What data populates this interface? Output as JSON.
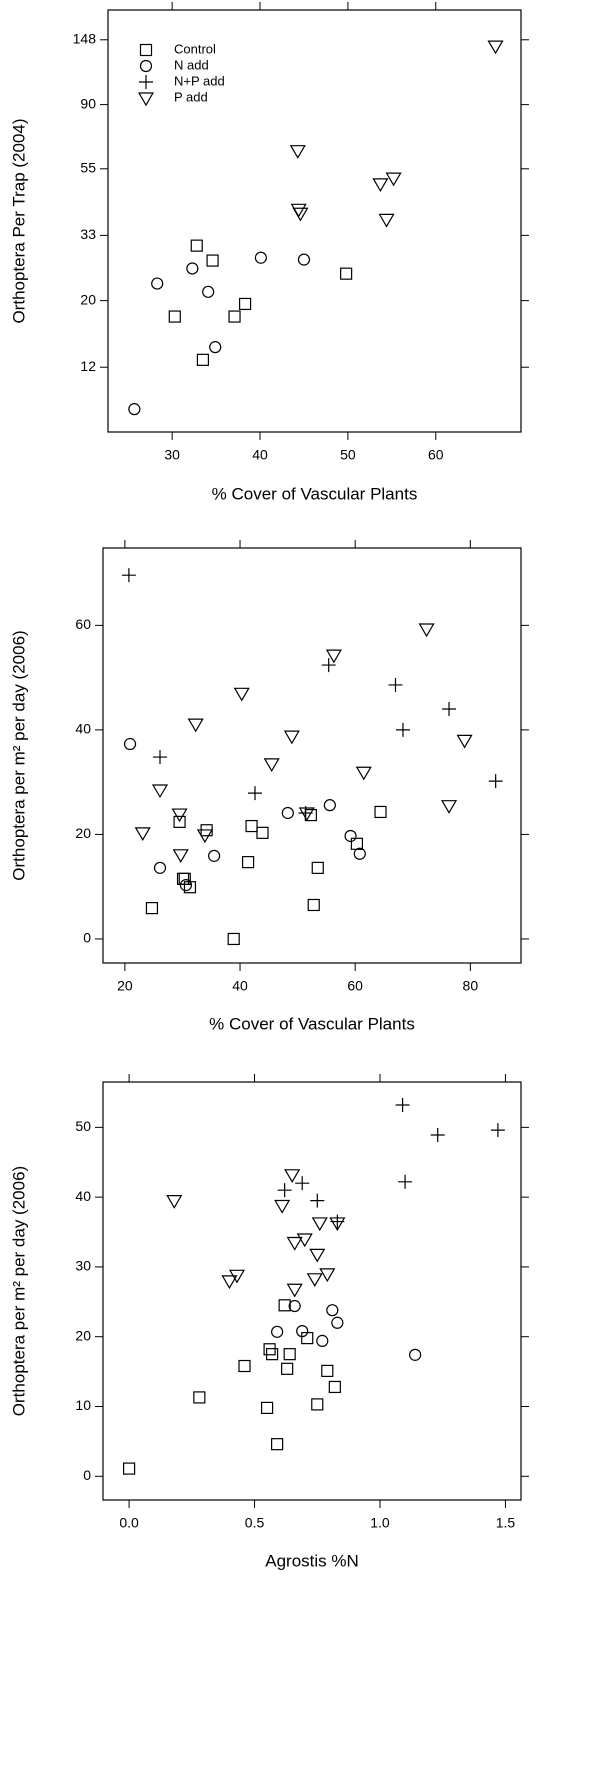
{
  "chart_data": [
    {
      "type": "scatter",
      "yscale": "log",
      "xlabel": "% Cover of Vascular Plants",
      "ylabel": "Orthoptera Per Trap (2004)",
      "xlim": [
        22.7,
        69.7
      ],
      "ylim": [
        7.3,
        186
      ],
      "xticks": [
        30,
        40,
        50,
        60
      ],
      "yticks": [
        12,
        20,
        33,
        55,
        90,
        148
      ],
      "legend": "top-left",
      "series": [
        {
          "name": "Control",
          "marker": "square",
          "color": "#000000",
          "x": [
            32.8,
            34.6,
            30.3,
            38.3,
            37.1,
            33.5,
            49.8
          ],
          "values": [
            30.5,
            27.2,
            17.7,
            19.5,
            17.7,
            12.7,
            24.6
          ]
        },
        {
          "name": "N add",
          "marker": "circle",
          "color": "#000000",
          "x": [
            28.3,
            32.3,
            34.1,
            40.1,
            45.0,
            34.9,
            25.7
          ],
          "values": [
            22.8,
            25.6,
            21.4,
            27.8,
            27.4,
            14.0,
            8.7
          ]
        },
        {
          "name": "N+P add",
          "marker": "plus",
          "color": "#000000",
          "x": [],
          "values": []
        },
        {
          "name": "P add",
          "marker": "triangle",
          "color": "#000000",
          "x": [
            44.3,
            44.4,
            44.6,
            53.7,
            55.2,
            54.4,
            66.8
          ],
          "values": [
            63.2,
            40.3,
            39.1,
            49.0,
            51.2,
            37.3,
            141
          ]
        }
      ]
    },
    {
      "type": "scatter",
      "xlabel": "% Cover of Vascular Plants",
      "ylabel": "Orthoptera per m² per day (2006)",
      "xlim": [
        16.2,
        88.8
      ],
      "ylim": [
        -4.6,
        74.8
      ],
      "xticks": [
        20,
        40,
        60,
        80
      ],
      "yticks": [
        0,
        20,
        40,
        60
      ],
      "series": [
        {
          "marker": "square",
          "color": "#000000",
          "x": [
            29.5,
            34.2,
            42.0,
            43.9,
            30.1,
            30.4,
            31.3,
            41.4,
            24.7,
            38.9,
            52.8,
            53.5,
            52.3,
            60.3,
            64.4
          ],
          "values": [
            22.4,
            20.8,
            21.6,
            20.3,
            11.5,
            11.5,
            9.9,
            14.7,
            5.9,
            0,
            6.5,
            13.6,
            23.7,
            18.2,
            24.3
          ]
        },
        {
          "marker": "circle",
          "color": "#000000",
          "x": [
            20.9,
            26.1,
            30.6,
            35.5,
            48.3,
            55.6,
            59.2,
            60.8
          ],
          "values": [
            37.3,
            13.6,
            10.3,
            15.9,
            24.1,
            25.6,
            19.7,
            16.3
          ]
        },
        {
          "marker": "plus",
          "color": "#000000",
          "x": [
            20.7,
            26.1,
            42.6,
            55.4,
            67.0,
            68.3,
            76.3,
            84.4,
            51.4
          ],
          "values": [
            69.6,
            34.8,
            27.9,
            52.4,
            48.6,
            40.0,
            44.0,
            30.2,
            24.1
          ]
        },
        {
          "marker": "triangle",
          "color": "#000000",
          "x": [
            56.3,
            72.4,
            40.3,
            32.3,
            49.0,
            79.0,
            45.5,
            61.5,
            26.1,
            29.5,
            29.7,
            23.1,
            33.9,
            51.6,
            76.3
          ],
          "values": [
            54.3,
            59.3,
            47.0,
            41.1,
            38.8,
            38.0,
            33.5,
            31.9,
            28.5,
            23.9,
            16.1,
            20.3,
            19.9,
            24.1,
            25.5
          ]
        }
      ]
    },
    {
      "type": "scatter",
      "xlabel": "Agrostis %N",
      "ylabel": "Orthoptera per m² per day (2006)",
      "xlim": [
        -0.104,
        1.562
      ],
      "ylim": [
        -3.4,
        56.5
      ],
      "xticks": [
        {
          "value": 0,
          "label": "0.0"
        },
        0.5,
        {
          "value": 1,
          "label": "1.0"
        },
        1.5
      ],
      "yticks": [
        0,
        10,
        20,
        30,
        40,
        50
      ],
      "series": [
        {
          "marker": "square",
          "color": "#000000",
          "x": [
            0.0,
            0.28,
            0.46,
            0.56,
            0.57,
            0.64,
            0.63,
            0.55,
            0.59,
            0.62,
            0.71,
            0.79,
            0.75,
            0.82
          ],
          "values": [
            1.1,
            11.3,
            15.8,
            18.2,
            17.5,
            17.5,
            15.4,
            9.8,
            4.6,
            24.5,
            19.8,
            15.1,
            10.3,
            12.8
          ]
        },
        {
          "marker": "circle",
          "color": "#000000",
          "x": [
            0.59,
            0.66,
            0.69,
            0.77,
            0.81,
            0.83,
            1.14
          ],
          "values": [
            20.7,
            24.4,
            20.8,
            19.4,
            23.8,
            22.0,
            17.4
          ]
        },
        {
          "marker": "plus",
          "color": "#000000",
          "x": [
            0.62,
            0.69,
            0.75,
            0.83,
            1.09,
            1.1,
            1.23,
            1.47
          ],
          "values": [
            41.0,
            42.0,
            39.5,
            36.5,
            53.2,
            42.2,
            48.9,
            49.6
          ]
        },
        {
          "marker": "triangle",
          "color": "#000000",
          "x": [
            0.18,
            0.4,
            0.43,
            0.61,
            0.65,
            0.66,
            0.7,
            0.66,
            0.75,
            0.74,
            0.79,
            0.76,
            0.83
          ],
          "values": [
            39.5,
            28.0,
            28.8,
            38.8,
            43.2,
            33.5,
            34.0,
            26.8,
            31.8,
            28.3,
            29.0,
            36.3,
            36.3
          ]
        }
      ]
    }
  ]
}
